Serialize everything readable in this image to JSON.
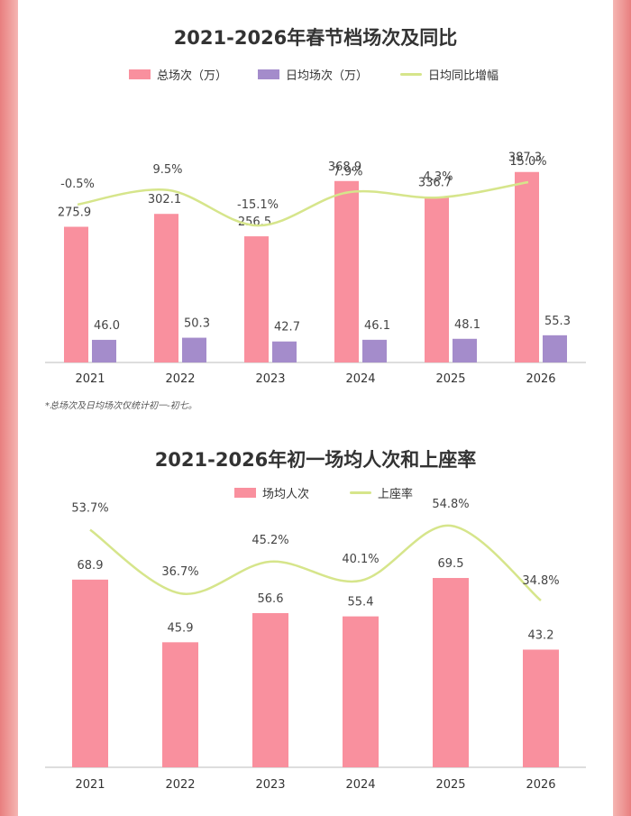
{
  "colors": {
    "bar_primary": "#f9909e",
    "bar_secondary": "#a48ccb",
    "line": "#d6e58b",
    "text": "#333333",
    "label": "#444444"
  },
  "chart_data": [
    {
      "type": "bar",
      "title": "2021-2026年春节档场次及同比",
      "categories": [
        "2021",
        "2022",
        "2023",
        "2024",
        "2025",
        "2026"
      ],
      "series": [
        {
          "name": "总场次（万）",
          "kind": "bar",
          "values": [
            275.9,
            302.1,
            256.5,
            368.9,
            336.7,
            387.3
          ],
          "labels": [
            "275.9",
            "302.1",
            "256.5",
            "368.9",
            "336.7",
            "387.3"
          ]
        },
        {
          "name": "日均场次（万）",
          "kind": "bar",
          "values": [
            46.0,
            50.3,
            42.7,
            46.1,
            48.1,
            55.3
          ],
          "labels": [
            "46.0",
            "50.3",
            "42.7",
            "46.1",
            "48.1",
            "55.3"
          ]
        },
        {
          "name": "日均同比增幅",
          "kind": "line",
          "values": [
            -0.5,
            9.5,
            -15.1,
            7.9,
            4.3,
            15.0
          ],
          "labels": [
            "-0.5%",
            "9.5%",
            "-15.1%",
            "7.9%",
            "4.3%",
            "15.0%"
          ]
        }
      ],
      "ylim": [
        0,
        440
      ],
      "line_ylim": [
        -40,
        60
      ],
      "legend": "top",
      "grid": false,
      "note": "*总场次及日均场次仅统计初一-初七。"
    },
    {
      "type": "bar",
      "title": "2021-2026年初一场均人次和上座率",
      "categories": [
        "2021",
        "2022",
        "2023",
        "2024",
        "2025",
        "2026"
      ],
      "series": [
        {
          "name": "场均人次",
          "kind": "bar",
          "values": [
            68.9,
            45.9,
            56.6,
            55.4,
            69.5,
            43.2
          ],
          "labels": [
            "68.9",
            "45.9",
            "56.6",
            "55.4",
            "69.5",
            "43.2"
          ]
        },
        {
          "name": "上座率",
          "kind": "line",
          "values": [
            53.7,
            36.7,
            45.2,
            40.1,
            54.8,
            34.8
          ],
          "labels": [
            "53.7%",
            "36.7%",
            "45.2%",
            "40.1%",
            "54.8%",
            "34.8%"
          ]
        }
      ],
      "ylim": [
        0,
        95
      ],
      "line_ylim": [
        0,
        90
      ],
      "legend": "top",
      "grid": false
    }
  ]
}
